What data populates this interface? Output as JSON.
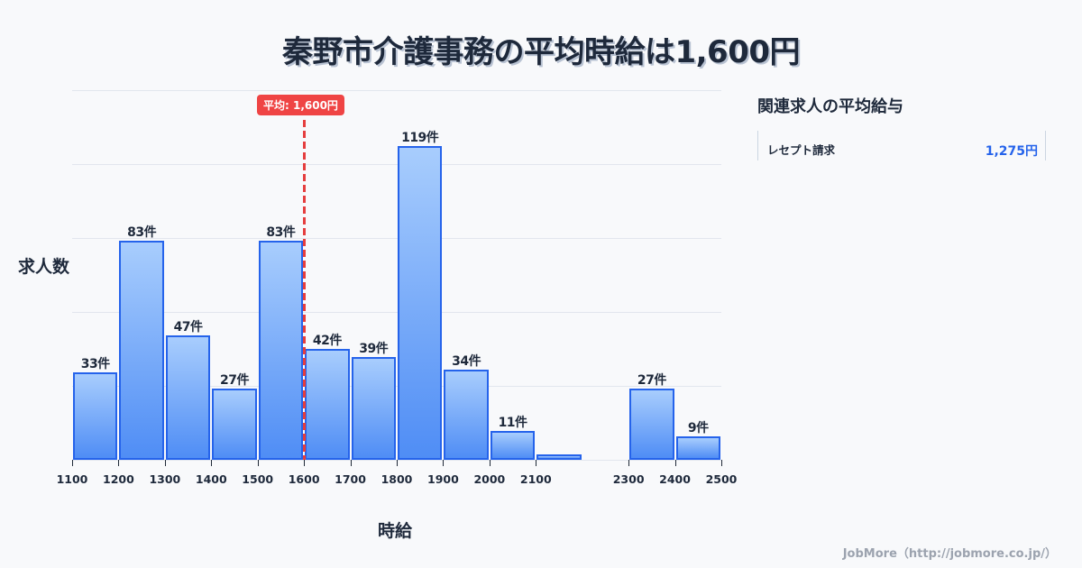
{
  "title": "秦野市介護事務の平均時給は1,600円",
  "axis": {
    "ylabel": "求人数",
    "xlabel": "時給"
  },
  "average_badge": "平均: 1,600円",
  "side_panel": {
    "title": "関連求人の平均給与",
    "items": [
      {
        "label": "レセプト請求",
        "value": "1,275円"
      }
    ]
  },
  "footer": "JobMore（http://jobmore.co.jp/）",
  "colors": {
    "bar_border": "#2563eb",
    "bar_top": "#a8cdfd",
    "bar_bottom": "#4f8df5",
    "average_line": "#ef4444",
    "side_value": "#2563eb"
  },
  "chart_data": {
    "type": "bar",
    "title": "秦野市介護事務の平均時給は1,600円",
    "xlabel": "時給",
    "ylabel": "求人数",
    "bins": [
      {
        "from": 1100,
        "to": 1200,
        "value": 33,
        "label": "33件"
      },
      {
        "from": 1200,
        "to": 1300,
        "value": 83,
        "label": "83件"
      },
      {
        "from": 1300,
        "to": 1400,
        "value": 47,
        "label": "47件"
      },
      {
        "from": 1400,
        "to": 1500,
        "value": 27,
        "label": "27件"
      },
      {
        "from": 1500,
        "to": 1600,
        "value": 83,
        "label": "83件"
      },
      {
        "from": 1600,
        "to": 1700,
        "value": 42,
        "label": "42件"
      },
      {
        "from": 1700,
        "to": 1800,
        "value": 39,
        "label": "39件"
      },
      {
        "from": 1800,
        "to": 1900,
        "value": 119,
        "label": "119件"
      },
      {
        "from": 1900,
        "to": 2000,
        "value": 34,
        "label": "34件"
      },
      {
        "from": 2000,
        "to": 2100,
        "value": 11,
        "label": "11件"
      },
      {
        "from": 2100,
        "to": 2200,
        "value": 2,
        "label": ""
      },
      {
        "from": 2200,
        "to": 2300,
        "value": 0,
        "label": ""
      },
      {
        "from": 2300,
        "to": 2400,
        "value": 27,
        "label": "27件"
      },
      {
        "from": 2400,
        "to": 2500,
        "value": 9,
        "label": "9件"
      }
    ],
    "x_ticks": [
      "1100",
      "1200",
      "1300",
      "1400",
      "1500",
      "1600",
      "1700",
      "1800",
      "1900",
      "2000",
      "2100",
      "2300",
      "2400",
      "2500"
    ],
    "average": {
      "x": 1600,
      "label": "平均: 1,600円"
    },
    "ylim": [
      0,
      140
    ],
    "grid": true
  }
}
